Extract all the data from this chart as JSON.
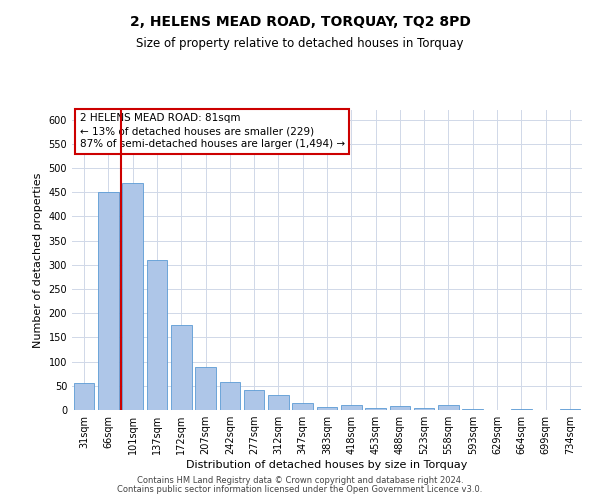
{
  "title": "2, HELENS MEAD ROAD, TORQUAY, TQ2 8PD",
  "subtitle": "Size of property relative to detached houses in Torquay",
  "xlabel": "Distribution of detached houses by size in Torquay",
  "ylabel": "Number of detached properties",
  "bin_labels": [
    "31sqm",
    "66sqm",
    "101sqm",
    "137sqm",
    "172sqm",
    "207sqm",
    "242sqm",
    "277sqm",
    "312sqm",
    "347sqm",
    "383sqm",
    "418sqm",
    "453sqm",
    "488sqm",
    "523sqm",
    "558sqm",
    "593sqm",
    "629sqm",
    "664sqm",
    "699sqm",
    "734sqm"
  ],
  "bar_heights": [
    55,
    450,
    470,
    310,
    175,
    88,
    58,
    42,
    32,
    15,
    7,
    10,
    5,
    8,
    5,
    10,
    2,
    0,
    3,
    0,
    3
  ],
  "bar_color": "#aec6e8",
  "bar_edge_color": "#5b9bd5",
  "vline_x": 1.5,
  "vline_color": "#cc0000",
  "annotation_box_text": "2 HELENS MEAD ROAD: 81sqm\n← 13% of detached houses are smaller (229)\n87% of semi-detached houses are larger (1,494) →",
  "footer_line1": "Contains HM Land Registry data © Crown copyright and database right 2024.",
  "footer_line2": "Contains public sector information licensed under the Open Government Licence v3.0.",
  "ylim": [
    0,
    620
  ],
  "yticks": [
    0,
    50,
    100,
    150,
    200,
    250,
    300,
    350,
    400,
    450,
    500,
    550,
    600
  ],
  "background_color": "#ffffff",
  "grid_color": "#d0d8e8",
  "title_fontsize": 10,
  "subtitle_fontsize": 8.5,
  "axis_label_fontsize": 8,
  "tick_fontsize": 7,
  "footer_fontsize": 6
}
